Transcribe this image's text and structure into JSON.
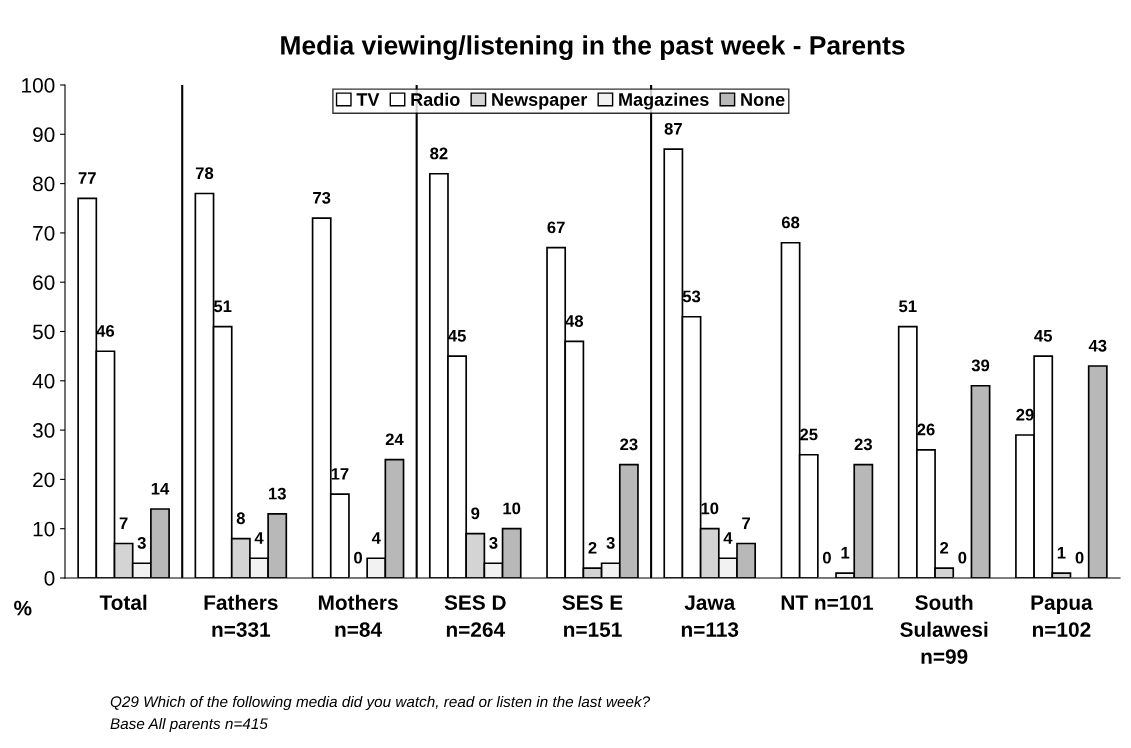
{
  "chart_data": {
    "type": "bar",
    "title": "Media viewing/listening in the past week - Parents",
    "ylabel": "%",
    "categories": [
      "Total",
      "Fathers\nn=331",
      "Mothers\nn=84",
      "SES D\nn=264",
      "SES E\nn=151",
      "Jawa\nn=113",
      "NT n=101",
      "South\nSulawesi\nn=99",
      "Papua\nn=102"
    ],
    "series": [
      {
        "name": "TV",
        "color": "#ffffff",
        "values": [
          77,
          78,
          73,
          82,
          67,
          87,
          68,
          51,
          29
        ]
      },
      {
        "name": "Radio",
        "color": "#ffffff",
        "values": [
          46,
          51,
          17,
          45,
          48,
          53,
          25,
          26,
          45
        ]
      },
      {
        "name": "Newspaper",
        "color": "#d4d4d4",
        "values": [
          7,
          8,
          0,
          9,
          2,
          10,
          0,
          2,
          1
        ]
      },
      {
        "name": "Magazines",
        "color": "#f2f2f2",
        "values": [
          3,
          4,
          4,
          3,
          3,
          4,
          1,
          0,
          0
        ]
      },
      {
        "name": "None",
        "color": "#b8b8b8",
        "values": [
          14,
          13,
          24,
          10,
          23,
          7,
          23,
          39,
          43
        ]
      }
    ],
    "ylim": [
      0,
      100
    ],
    "yticks": [
      0,
      10,
      20,
      30,
      40,
      50,
      60,
      70,
      80,
      90,
      100
    ],
    "data_labels": true,
    "grid": false,
    "legend": "top",
    "annotations": [
      "Q29 Which of the following media did you watch, read or listen in the last week?",
      "Base All parents n=415"
    ]
  }
}
